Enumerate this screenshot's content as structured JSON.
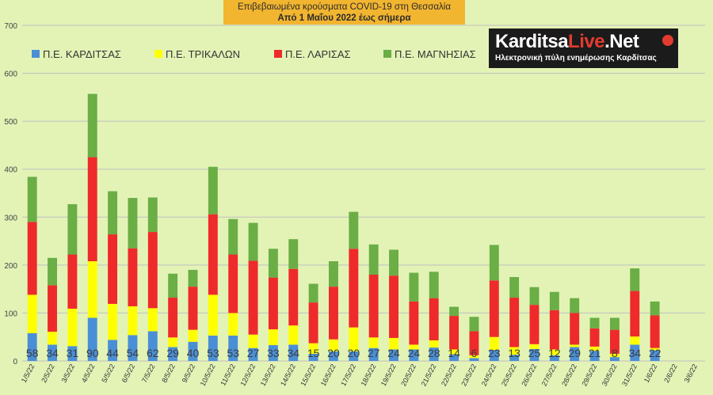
{
  "header": {
    "title_line1": "Επιβεβαιωμένα κρούσματα COVID-19 στη Θεσσαλία",
    "title_line2": "Από 1 Μαΐου 2022 έως σήμερα"
  },
  "logo": {
    "part1": "Karditsa",
    "part2": "Live",
    "part3": ".Net",
    "subtitle": "Ηλεκτρονική πύλη ενημέρωσης Καρδίτσας"
  },
  "chart_data": {
    "type": "bar",
    "stacked": true,
    "title": "Επιβεβαιωμένα κρούσματα COVID-19 στη Θεσσαλία",
    "subtitle": "Από 1 Μαΐου 2022 έως σήμερα",
    "categories": [
      "1/5/22",
      "2/5/22",
      "3/5/22",
      "4/5/22",
      "5/5/22",
      "6/5/22",
      "7/5/22",
      "8/5/22",
      "9/5/22",
      "10/5/22",
      "11/5/22",
      "12/5/22",
      "13/5/22",
      "14/5/22",
      "15/5/22",
      "16/5/22",
      "17/5/22",
      "18/5/22",
      "19/5/22",
      "20/5/22",
      "21/5/22",
      "22/5/22",
      "23/5/22",
      "24/5/22",
      "25/5/22",
      "26/5/22",
      "27/5/22",
      "28/5/22",
      "29/5/22",
      "30/5/22",
      "31/5/22",
      "1/6/22",
      "2/6/22",
      "3/6/22"
    ],
    "ylim": [
      0,
      700
    ],
    "yticks": [
      0,
      100,
      200,
      300,
      400,
      500,
      600,
      700
    ],
    "grid": true,
    "legend_position": "top-left",
    "series": [
      {
        "name": "Π.Ε. ΚΑΡΔΙΤΣΑΣ",
        "color": "#4a8fd6",
        "values": [
          58,
          34,
          31,
          90,
          44,
          54,
          62,
          29,
          40,
          53,
          53,
          27,
          33,
          34,
          15,
          20,
          20,
          27,
          24,
          24,
          28,
          14,
          6,
          23,
          13,
          25,
          12,
          29,
          21,
          8,
          34,
          22,
          0,
          0
        ]
      },
      {
        "name": "Π.Ε. ΤΡΙΚΑΛΩΝ",
        "color": "#ffff00",
        "values": [
          80,
          27,
          78,
          118,
          75,
          60,
          48,
          20,
          25,
          85,
          47,
          28,
          33,
          40,
          22,
          25,
          50,
          22,
          24,
          10,
          15,
          10,
          6,
          27,
          16,
          10,
          12,
          5,
          9,
          7,
          17,
          5,
          0,
          0
        ]
      },
      {
        "name": "Π.Ε. ΛΑΡΙΣΑΣ",
        "color": "#ee2a2a",
        "values": [
          152,
          97,
          113,
          217,
          145,
          121,
          159,
          83,
          90,
          168,
          122,
          154,
          108,
          118,
          85,
          110,
          164,
          131,
          130,
          90,
          88,
          70,
          50,
          118,
          103,
          82,
          82,
          66,
          38,
          50,
          95,
          68,
          0,
          0
        ]
      },
      {
        "name": "Π.Ε. ΜΑΓΝΗΣΙΑΣ",
        "color": "#6aae45",
        "values": [
          94,
          57,
          105,
          132,
          90,
          105,
          72,
          50,
          35,
          99,
          74,
          79,
          60,
          62,
          39,
          53,
          77,
          63,
          54,
          60,
          55,
          19,
          30,
          74,
          43,
          37,
          38,
          31,
          22,
          25,
          47,
          29,
          0,
          0
        ]
      }
    ],
    "data_labels_series": "Π.Ε. ΚΑΡΔΙΤΣΑΣ",
    "data_labels": [
      "58",
      "34",
      "31",
      "90",
      "44",
      "54",
      "62",
      "29",
      "40",
      "53",
      "53",
      "27",
      "33",
      "34",
      "15",
      "20",
      "20",
      "27",
      "24",
      "24",
      "28",
      "14",
      "6",
      "23",
      "13",
      "25",
      "12",
      "29",
      "21",
      "8",
      "34",
      "22",
      "",
      ""
    ]
  }
}
